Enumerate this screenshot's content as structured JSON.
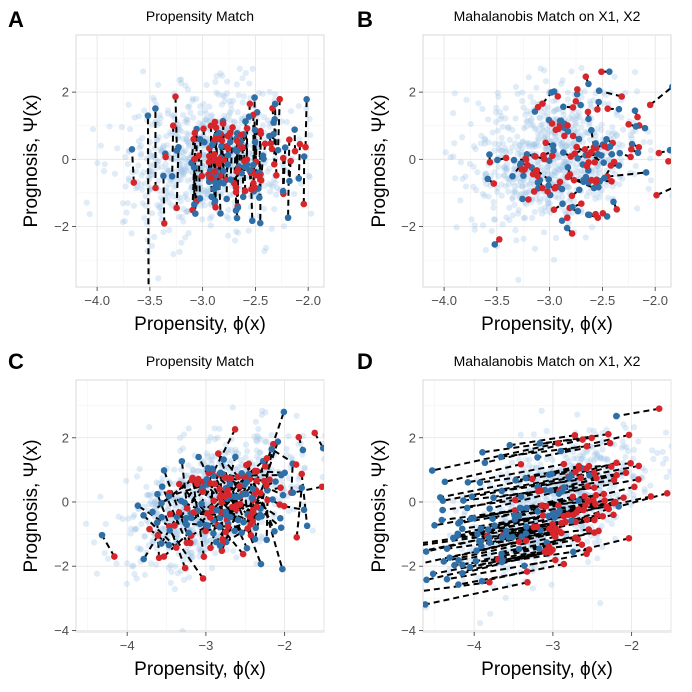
{
  "chart_data": [
    {
      "type": "scatter",
      "tag": "A",
      "title": "Propensity Match",
      "xlabel": "Propensity, ϕ(x)",
      "ylabel": "Prognosis, Ψ(x)",
      "xlim": [
        -4.2,
        -1.85
      ],
      "ylim": [
        -3.8,
        3.7
      ],
      "xticks": [
        -4.0,
        -3.5,
        -3.0,
        -2.5,
        -2.0
      ],
      "xtick_labels": [
        "−4.0",
        "−3.5",
        "−3.0",
        "−2.5",
        "−2.0"
      ],
      "yticks": [
        -2,
        0,
        2
      ],
      "ytick_labels": [
        "−2",
        "0",
        "2"
      ],
      "match_type": "propensity",
      "seed": 11
    },
    {
      "type": "scatter",
      "tag": "B",
      "title": "Mahalanobis Match on X1, X2",
      "xlabel": "Propensity, ϕ(x)",
      "ylabel": "Prognosis, Ψ(x)",
      "xlim": [
        -4.2,
        -1.85
      ],
      "ylim": [
        -3.8,
        3.7
      ],
      "xticks": [
        -4.0,
        -3.5,
        -3.0,
        -2.5,
        -2.0
      ],
      "xtick_labels": [
        "−4.0",
        "−3.5",
        "−3.0",
        "−2.5",
        "−2.0"
      ],
      "yticks": [
        -2,
        0,
        2
      ],
      "ytick_labels": [
        "−2",
        "0",
        "2"
      ],
      "match_type": "mahalanobis-short",
      "seed": 11
    },
    {
      "type": "scatter",
      "tag": "C",
      "title": "Propensity Match",
      "xlabel": "Propensity, ϕ(x)",
      "ylabel": "Prognosis, Ψ(x)",
      "xlim": [
        -4.65,
        -1.5
      ],
      "ylim": [
        -4.05,
        3.8
      ],
      "xticks": [
        -4,
        -3,
        -2
      ],
      "xtick_labels": [
        "−4",
        "−3",
        "−2"
      ],
      "yticks": [
        -4,
        -2,
        0,
        2
      ],
      "ytick_labels": [
        "−4",
        "−2",
        "0",
        "2"
      ],
      "match_type": "propensity-random",
      "seed": 23
    },
    {
      "type": "scatter",
      "tag": "D",
      "title": "Mahalanobis Match on X1, X2",
      "xlabel": "Propensity, ϕ(x)",
      "ylabel": "Prognosis, Ψ(x)",
      "xlim": [
        -4.65,
        -1.5
      ],
      "ylim": [
        -4.05,
        3.8
      ],
      "xticks": [
        -4,
        -3,
        -2
      ],
      "xtick_labels": [
        "−4",
        "−3",
        "−2"
      ],
      "yticks": [
        -4,
        -2,
        0,
        2
      ],
      "ytick_labels": [
        "−4",
        "−2",
        "0",
        "2"
      ],
      "match_type": "mahalanobis-diagonal",
      "seed": 23
    }
  ],
  "colors": {
    "treated": "#d6262b",
    "control": "#2f6fa7",
    "population": "#9ec3e6"
  }
}
